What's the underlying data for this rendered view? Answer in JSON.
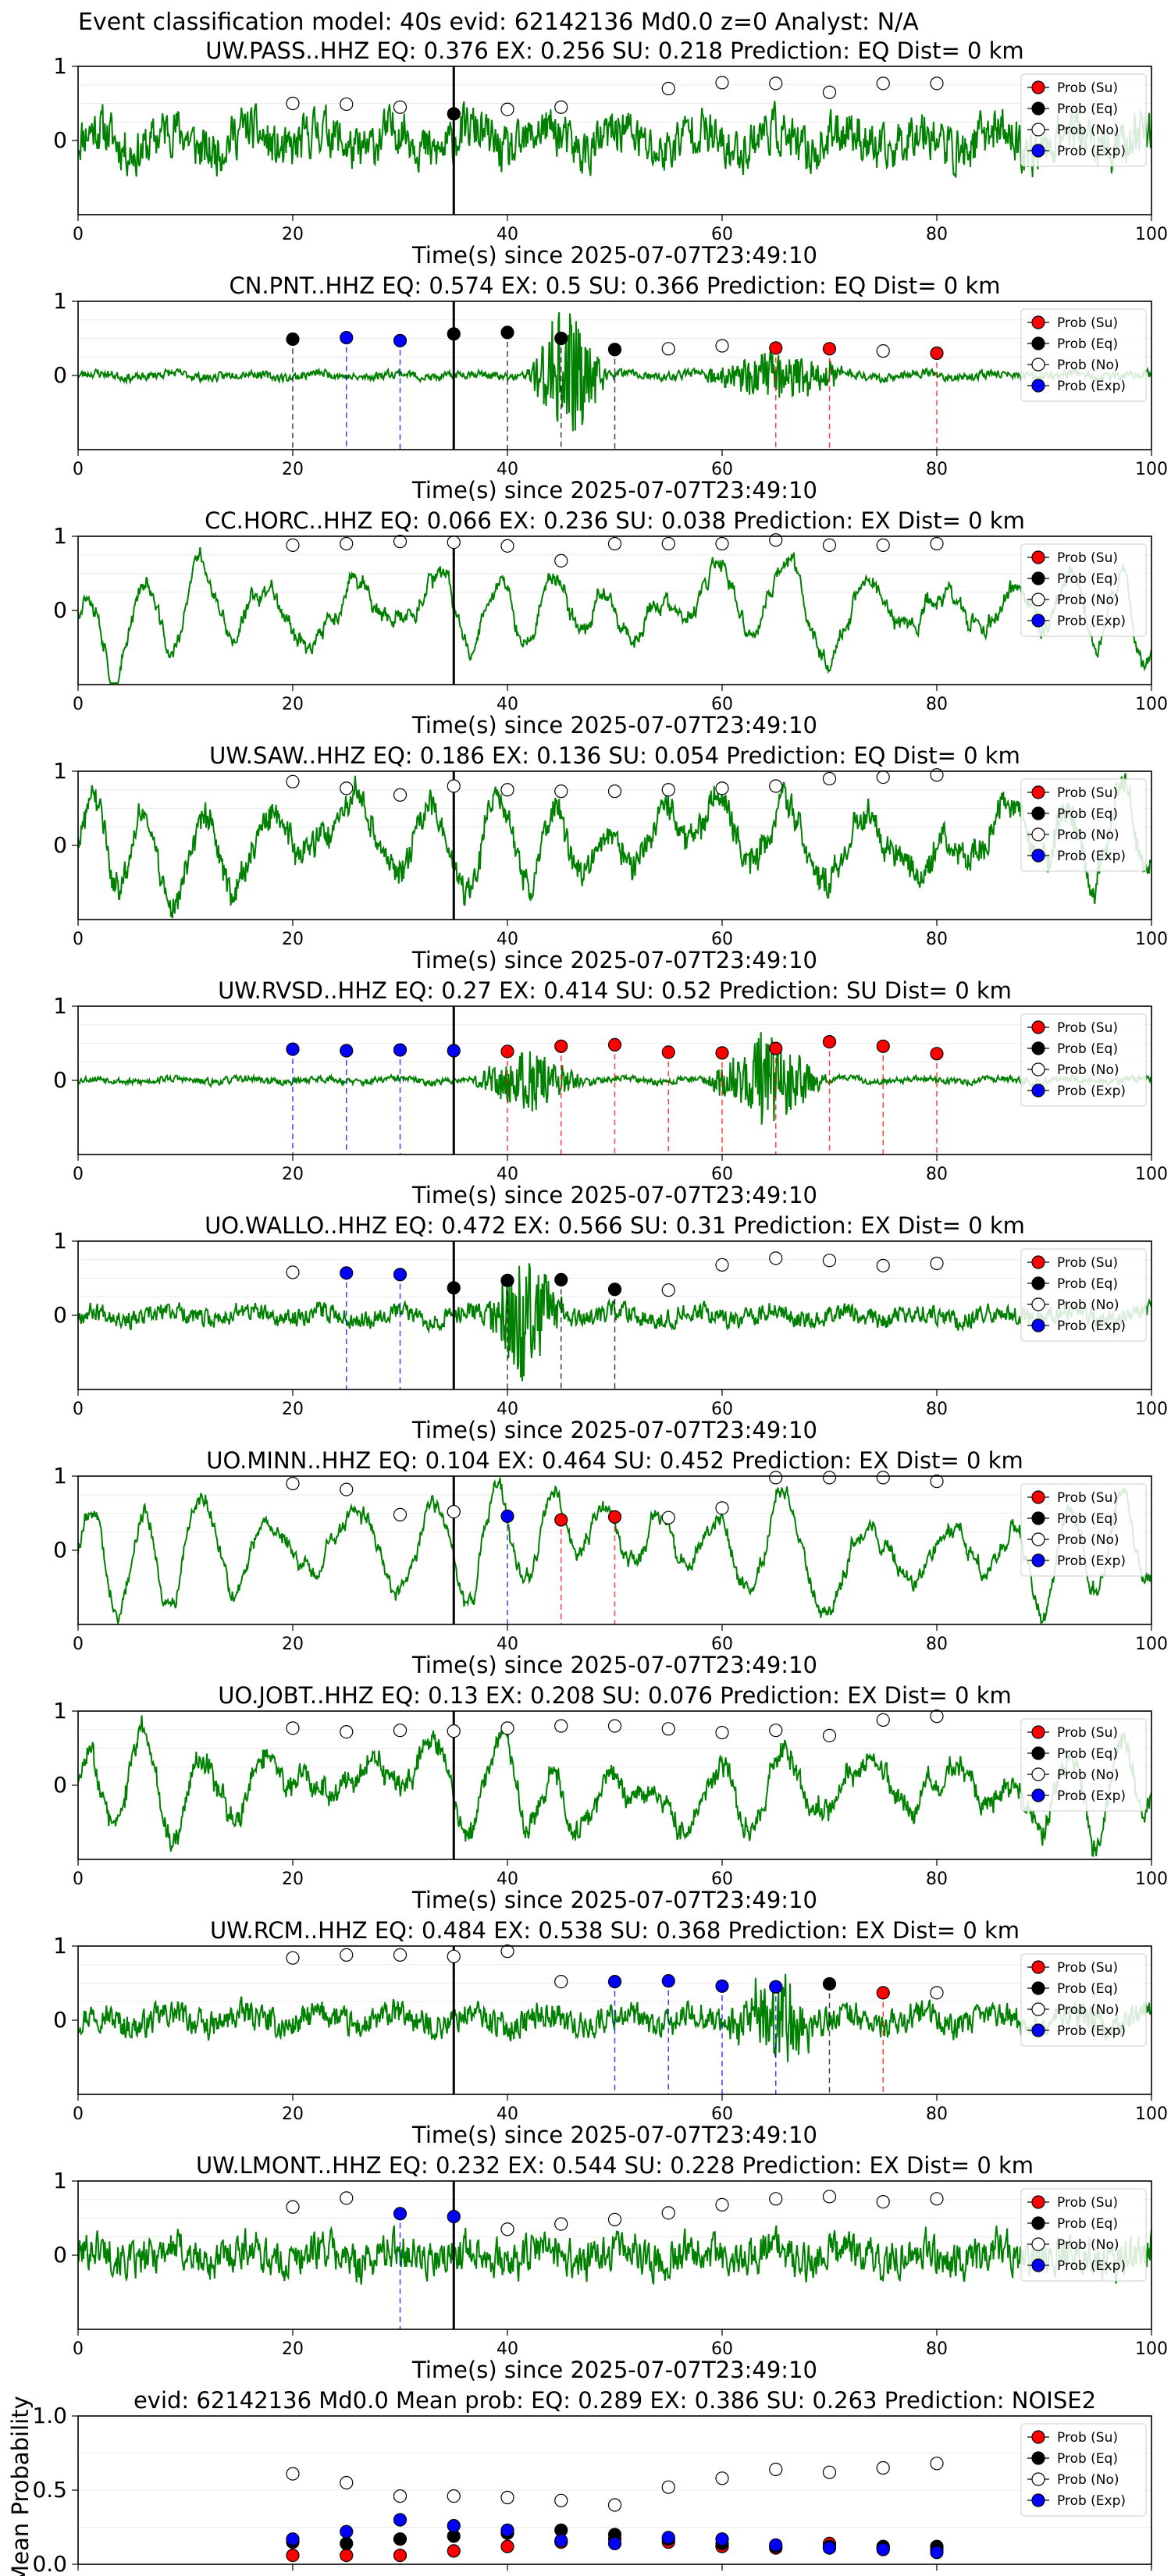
{
  "figure": {
    "suptitle": "Event classification model: 40s evid: 62142136 Md0.0 z=0 Analyst: N/A"
  },
  "legend_labels": [
    "Prob (Su)",
    "Prob (Eq)",
    "Prob (No)",
    "Prob (Exp)"
  ],
  "class_colors": {
    "su": "#ff0000",
    "eq": "#000000",
    "no": "#ffffff",
    "exp": "#0000ff"
  },
  "trace_color": "#008000",
  "chart_data": [
    {
      "type": "line",
      "title": "UW.PASS..HHZ   EQ: 0.376  EX: 0.256  SU: 0.218   Prediction: EQ    Dist= 0 km",
      "xlabel": "Time(s) since 2025-07-07T23:49:10",
      "xlim": [
        0,
        100
      ],
      "ylim": [
        -1,
        1
      ],
      "xticks": [
        0,
        20,
        40,
        60,
        80,
        100
      ],
      "yticks": [
        0,
        1
      ],
      "vline": 35,
      "points": [
        {
          "x": 20,
          "y": 0.5,
          "cls": "no"
        },
        {
          "x": 25,
          "y": 0.49,
          "cls": "no"
        },
        {
          "x": 30,
          "y": 0.45,
          "cls": "no"
        },
        {
          "x": 35,
          "y": 0.36,
          "cls": "eq"
        },
        {
          "x": 40,
          "y": 0.42,
          "cls": "no"
        },
        {
          "x": 45,
          "y": 0.45,
          "cls": "no"
        },
        {
          "x": 55,
          "y": 0.7,
          "cls": "no"
        },
        {
          "x": 60,
          "y": 0.78,
          "cls": "no"
        },
        {
          "x": 65,
          "y": 0.77,
          "cls": "no"
        },
        {
          "x": 70,
          "y": 0.65,
          "cls": "no"
        },
        {
          "x": 75,
          "y": 0.77,
          "cls": "no"
        },
        {
          "x": 80,
          "y": 0.77,
          "cls": "no"
        }
      ],
      "signal": {
        "seed": 11,
        "kind": "noisy",
        "amp": 0.55,
        "noise": 0.55
      }
    },
    {
      "type": "line",
      "title": "CN.PNT..HHZ   EQ: 0.574  EX: 0.5  SU: 0.366   Prediction: EQ    Dist= 0 km",
      "xlabel": "Time(s) since 2025-07-07T23:49:10",
      "xlim": [
        0,
        100
      ],
      "ylim": [
        -1,
        1
      ],
      "xticks": [
        0,
        20,
        40,
        60,
        80,
        100
      ],
      "yticks": [
        0,
        1
      ],
      "vline": 35,
      "points": [
        {
          "x": 20,
          "y": 0.49,
          "cls": "eq"
        },
        {
          "x": 25,
          "y": 0.51,
          "cls": "exp"
        },
        {
          "x": 30,
          "y": 0.47,
          "cls": "exp"
        },
        {
          "x": 35,
          "y": 0.56,
          "cls": "eq"
        },
        {
          "x": 40,
          "y": 0.58,
          "cls": "eq"
        },
        {
          "x": 45,
          "y": 0.5,
          "cls": "eq"
        },
        {
          "x": 50,
          "y": 0.35,
          "cls": "eq"
        },
        {
          "x": 55,
          "y": 0.36,
          "cls": "no"
        },
        {
          "x": 60,
          "y": 0.4,
          "cls": "no"
        },
        {
          "x": 65,
          "y": 0.37,
          "cls": "su"
        },
        {
          "x": 70,
          "y": 0.36,
          "cls": "su"
        },
        {
          "x": 75,
          "y": 0.33,
          "cls": "no"
        },
        {
          "x": 80,
          "y": 0.3,
          "cls": "su"
        }
      ],
      "signal": {
        "seed": 23,
        "kind": "quiet",
        "amp": 0.1,
        "noise": 0.1,
        "bursts": [
          [
            45.5,
            4,
            1.0
          ],
          [
            65,
            8,
            0.35
          ]
        ]
      }
    },
    {
      "type": "line",
      "title": "CC.HORC..HHZ   EQ: 0.066  EX: 0.236  SU: 0.038   Prediction: EX    Dist= 0 km",
      "xlabel": "Time(s) since 2025-07-07T23:49:10",
      "xlim": [
        0,
        100
      ],
      "ylim": [
        -1,
        1
      ],
      "xticks": [
        0,
        20,
        40,
        60,
        80,
        100
      ],
      "yticks": [
        0,
        1
      ],
      "vline": 35,
      "points": [
        {
          "x": 20,
          "y": 0.88,
          "cls": "no"
        },
        {
          "x": 25,
          "y": 0.9,
          "cls": "no"
        },
        {
          "x": 30,
          "y": 0.93,
          "cls": "no"
        },
        {
          "x": 35,
          "y": 0.92,
          "cls": "no"
        },
        {
          "x": 40,
          "y": 0.87,
          "cls": "no"
        },
        {
          "x": 45,
          "y": 0.67,
          "cls": "no"
        },
        {
          "x": 50,
          "y": 0.9,
          "cls": "no"
        },
        {
          "x": 55,
          "y": 0.9,
          "cls": "no"
        },
        {
          "x": 60,
          "y": 0.9,
          "cls": "no"
        },
        {
          "x": 65,
          "y": 0.95,
          "cls": "no"
        },
        {
          "x": 70,
          "y": 0.88,
          "cls": "no"
        },
        {
          "x": 75,
          "y": 0.88,
          "cls": "no"
        },
        {
          "x": 80,
          "y": 0.9,
          "cls": "no"
        }
      ],
      "signal": {
        "seed": 37,
        "kind": "wave",
        "amp": 0.55,
        "noise": 0.12
      }
    },
    {
      "type": "line",
      "title": "UW.SAW..HHZ   EQ: 0.186  EX: 0.136  SU: 0.054   Prediction: EQ    Dist= 0 km",
      "xlabel": "Time(s) since 2025-07-07T23:49:10",
      "xlim": [
        0,
        100
      ],
      "ylim": [
        -1,
        1
      ],
      "xticks": [
        0,
        20,
        40,
        60,
        80,
        100
      ],
      "yticks": [
        0,
        1
      ],
      "vline": 35,
      "points": [
        {
          "x": 20,
          "y": 0.86,
          "cls": "no"
        },
        {
          "x": 25,
          "y": 0.77,
          "cls": "no"
        },
        {
          "x": 30,
          "y": 0.68,
          "cls": "no"
        },
        {
          "x": 35,
          "y": 0.8,
          "cls": "no"
        },
        {
          "x": 40,
          "y": 0.75,
          "cls": "no"
        },
        {
          "x": 45,
          "y": 0.73,
          "cls": "no"
        },
        {
          "x": 50,
          "y": 0.73,
          "cls": "no"
        },
        {
          "x": 55,
          "y": 0.75,
          "cls": "no"
        },
        {
          "x": 60,
          "y": 0.77,
          "cls": "no"
        },
        {
          "x": 65,
          "y": 0.8,
          "cls": "no"
        },
        {
          "x": 70,
          "y": 0.9,
          "cls": "no"
        },
        {
          "x": 75,
          "y": 0.92,
          "cls": "no"
        },
        {
          "x": 80,
          "y": 0.95,
          "cls": "no"
        }
      ],
      "signal": {
        "seed": 41,
        "kind": "wave",
        "amp": 0.55,
        "noise": 0.3
      }
    },
    {
      "type": "line",
      "title": "UW.RVSD..HHZ   EQ: 0.27  EX: 0.414  SU: 0.52   Prediction: SU    Dist= 0 km",
      "xlabel": "Time(s) since 2025-07-07T23:49:10",
      "xlim": [
        0,
        100
      ],
      "ylim": [
        -1,
        1
      ],
      "xticks": [
        0,
        20,
        40,
        60,
        80,
        100
      ],
      "yticks": [
        0,
        1
      ],
      "vline": 35,
      "points": [
        {
          "x": 20,
          "y": 0.42,
          "cls": "exp"
        },
        {
          "x": 25,
          "y": 0.4,
          "cls": "exp"
        },
        {
          "x": 30,
          "y": 0.41,
          "cls": "exp"
        },
        {
          "x": 35,
          "y": 0.4,
          "cls": "exp"
        },
        {
          "x": 40,
          "y": 0.39,
          "cls": "su"
        },
        {
          "x": 45,
          "y": 0.46,
          "cls": "su"
        },
        {
          "x": 50,
          "y": 0.48,
          "cls": "su"
        },
        {
          "x": 55,
          "y": 0.38,
          "cls": "su"
        },
        {
          "x": 60,
          "y": 0.37,
          "cls": "su"
        },
        {
          "x": 65,
          "y": 0.43,
          "cls": "su"
        },
        {
          "x": 70,
          "y": 0.52,
          "cls": "su"
        },
        {
          "x": 75,
          "y": 0.46,
          "cls": "su"
        },
        {
          "x": 80,
          "y": 0.36,
          "cls": "su"
        }
      ],
      "signal": {
        "seed": 53,
        "kind": "quiet",
        "amp": 0.08,
        "noise": 0.08,
        "bursts": [
          [
            42,
            6,
            0.45
          ],
          [
            64,
            6,
            0.7
          ]
        ]
      }
    },
    {
      "type": "line",
      "title": "UO.WALLO..HHZ   EQ: 0.472  EX: 0.566  SU: 0.31   Prediction: EX    Dist= 0 km",
      "xlabel": "Time(s) since 2025-07-07T23:49:10",
      "xlim": [
        0,
        100
      ],
      "ylim": [
        -1,
        1
      ],
      "xticks": [
        0,
        20,
        40,
        60,
        80,
        100
      ],
      "yticks": [
        0,
        1
      ],
      "vline": 35,
      "points": [
        {
          "x": 20,
          "y": 0.58,
          "cls": "no"
        },
        {
          "x": 25,
          "y": 0.57,
          "cls": "exp"
        },
        {
          "x": 30,
          "y": 0.55,
          "cls": "exp"
        },
        {
          "x": 35,
          "y": 0.37,
          "cls": "eq"
        },
        {
          "x": 40,
          "y": 0.47,
          "cls": "eq"
        },
        {
          "x": 45,
          "y": 0.48,
          "cls": "eq"
        },
        {
          "x": 50,
          "y": 0.35,
          "cls": "eq"
        },
        {
          "x": 55,
          "y": 0.34,
          "cls": "no"
        },
        {
          "x": 60,
          "y": 0.68,
          "cls": "no"
        },
        {
          "x": 65,
          "y": 0.77,
          "cls": "no"
        },
        {
          "x": 70,
          "y": 0.74,
          "cls": "no"
        },
        {
          "x": 75,
          "y": 0.67,
          "cls": "no"
        },
        {
          "x": 80,
          "y": 0.7,
          "cls": "no"
        }
      ],
      "signal": {
        "seed": 67,
        "kind": "quiet",
        "amp": 0.2,
        "noise": 0.22,
        "bursts": [
          [
            41.5,
            4,
            0.9
          ]
        ]
      }
    },
    {
      "type": "line",
      "title": "UO.MINN..HHZ   EQ: 0.104  EX: 0.464  SU: 0.452   Prediction: EX    Dist= 0 km",
      "xlabel": "Time(s) since 2025-07-07T23:49:10",
      "xlim": [
        0,
        100
      ],
      "ylim": [
        -1,
        1
      ],
      "xticks": [
        0,
        20,
        40,
        60,
        80,
        100
      ],
      "yticks": [
        0,
        1
      ],
      "vline": 35,
      "points": [
        {
          "x": 20,
          "y": 0.9,
          "cls": "no"
        },
        {
          "x": 25,
          "y": 0.82,
          "cls": "no"
        },
        {
          "x": 30,
          "y": 0.48,
          "cls": "no"
        },
        {
          "x": 35,
          "y": 0.52,
          "cls": "no"
        },
        {
          "x": 40,
          "y": 0.46,
          "cls": "exp"
        },
        {
          "x": 45,
          "y": 0.41,
          "cls": "su"
        },
        {
          "x": 50,
          "y": 0.45,
          "cls": "su"
        },
        {
          "x": 55,
          "y": 0.44,
          "cls": "no"
        },
        {
          "x": 60,
          "y": 0.57,
          "cls": "no"
        },
        {
          "x": 65,
          "y": 0.98,
          "cls": "no"
        },
        {
          "x": 70,
          "y": 0.98,
          "cls": "no"
        },
        {
          "x": 75,
          "y": 0.98,
          "cls": "no"
        },
        {
          "x": 80,
          "y": 0.93,
          "cls": "no"
        }
      ],
      "signal": {
        "seed": 79,
        "kind": "wave",
        "amp": 0.65,
        "noise": 0.1
      }
    },
    {
      "type": "line",
      "title": "UO.JOBT..HHZ   EQ: 0.13  EX: 0.208  SU: 0.076   Prediction: EX    Dist= 0 km",
      "xlabel": "Time(s) since 2025-07-07T23:49:10",
      "xlim": [
        0,
        100
      ],
      "ylim": [
        -1,
        1
      ],
      "xticks": [
        0,
        20,
        40,
        60,
        80,
        100
      ],
      "yticks": [
        0,
        1
      ],
      "vline": 35,
      "points": [
        {
          "x": 20,
          "y": 0.77,
          "cls": "no"
        },
        {
          "x": 25,
          "y": 0.72,
          "cls": "no"
        },
        {
          "x": 30,
          "y": 0.74,
          "cls": "no"
        },
        {
          "x": 35,
          "y": 0.73,
          "cls": "no"
        },
        {
          "x": 40,
          "y": 0.77,
          "cls": "no"
        },
        {
          "x": 45,
          "y": 0.8,
          "cls": "no"
        },
        {
          "x": 50,
          "y": 0.8,
          "cls": "no"
        },
        {
          "x": 55,
          "y": 0.76,
          "cls": "no"
        },
        {
          "x": 60,
          "y": 0.71,
          "cls": "no"
        },
        {
          "x": 65,
          "y": 0.74,
          "cls": "no"
        },
        {
          "x": 70,
          "y": 0.67,
          "cls": "no"
        },
        {
          "x": 75,
          "y": 0.88,
          "cls": "no"
        },
        {
          "x": 80,
          "y": 0.93,
          "cls": "no"
        }
      ],
      "signal": {
        "seed": 83,
        "kind": "wave",
        "amp": 0.5,
        "noise": 0.22
      }
    },
    {
      "type": "line",
      "title": "UW.RCM..HHZ   EQ: 0.484  EX: 0.538  SU: 0.368   Prediction: EX    Dist= 0 km",
      "xlabel": "Time(s) since 2025-07-07T23:49:10",
      "xlim": [
        0,
        100
      ],
      "ylim": [
        -1,
        1
      ],
      "xticks": [
        0,
        20,
        40,
        60,
        80,
        100
      ],
      "yticks": [
        0,
        1
      ],
      "vline": 35,
      "points": [
        {
          "x": 20,
          "y": 0.84,
          "cls": "no"
        },
        {
          "x": 25,
          "y": 0.88,
          "cls": "no"
        },
        {
          "x": 30,
          "y": 0.88,
          "cls": "no"
        },
        {
          "x": 35,
          "y": 0.86,
          "cls": "no"
        },
        {
          "x": 40,
          "y": 0.93,
          "cls": "no"
        },
        {
          "x": 45,
          "y": 0.52,
          "cls": "no"
        },
        {
          "x": 50,
          "y": 0.52,
          "cls": "exp"
        },
        {
          "x": 55,
          "y": 0.53,
          "cls": "exp"
        },
        {
          "x": 60,
          "y": 0.46,
          "cls": "exp"
        },
        {
          "x": 65,
          "y": 0.45,
          "cls": "exp"
        },
        {
          "x": 70,
          "y": 0.49,
          "cls": "eq"
        },
        {
          "x": 75,
          "y": 0.37,
          "cls": "su"
        },
        {
          "x": 80,
          "y": 0.37,
          "cls": "no"
        }
      ],
      "signal": {
        "seed": 97,
        "kind": "noisy",
        "amp": 0.3,
        "noise": 0.32,
        "bursts": [
          [
            65,
            5,
            0.6
          ]
        ]
      }
    },
    {
      "type": "line",
      "title": "UW.LMONT..HHZ   EQ: 0.232  EX: 0.544  SU: 0.228   Prediction: EX    Dist= 0 km",
      "xlabel": "Time(s) since 2025-07-07T23:49:10",
      "xlim": [
        0,
        100
      ],
      "ylim": [
        -1,
        1
      ],
      "xticks": [
        0,
        20,
        40,
        60,
        80,
        100
      ],
      "yticks": [
        0,
        1
      ],
      "vline": 35,
      "points": [
        {
          "x": 20,
          "y": 0.65,
          "cls": "no"
        },
        {
          "x": 25,
          "y": 0.77,
          "cls": "no"
        },
        {
          "x": 30,
          "y": 0.56,
          "cls": "exp"
        },
        {
          "x": 35,
          "y": 0.52,
          "cls": "exp"
        },
        {
          "x": 40,
          "y": 0.35,
          "cls": "no"
        },
        {
          "x": 45,
          "y": 0.42,
          "cls": "no"
        },
        {
          "x": 50,
          "y": 0.48,
          "cls": "no"
        },
        {
          "x": 55,
          "y": 0.57,
          "cls": "no"
        },
        {
          "x": 60,
          "y": 0.68,
          "cls": "no"
        },
        {
          "x": 65,
          "y": 0.76,
          "cls": "no"
        },
        {
          "x": 70,
          "y": 0.79,
          "cls": "no"
        },
        {
          "x": 75,
          "y": 0.72,
          "cls": "no"
        },
        {
          "x": 80,
          "y": 0.76,
          "cls": "no"
        }
      ],
      "signal": {
        "seed": 101,
        "kind": "noisy",
        "amp": 0.35,
        "noise": 0.45
      }
    },
    {
      "type": "scatter",
      "title": "evid: 62142136  Md0.0   Mean prob:   EQ: 0.289  EX: 0.386  SU: 0.263   Prediction: NOISE2",
      "ylabel": "Mean Probability",
      "xlim": [
        0,
        100
      ],
      "ylim": [
        0,
        1
      ],
      "xticks": [
        0,
        20,
        40,
        60,
        80,
        100
      ],
      "yticks": [
        0.0,
        0.5,
        1.0
      ],
      "ytick_labels": [
        "0.0",
        "0.5",
        "1.0"
      ],
      "x": [
        20,
        25,
        30,
        35,
        40,
        45,
        50,
        55,
        60,
        65,
        70,
        75,
        80
      ],
      "series": [
        {
          "name": "Prob (Su)",
          "cls": "su",
          "values": [
            0.06,
            0.06,
            0.06,
            0.09,
            0.12,
            0.15,
            0.17,
            0.15,
            0.12,
            0.11,
            0.14,
            0.11,
            0.1
          ]
        },
        {
          "name": "Prob (Eq)",
          "cls": "eq",
          "values": [
            0.15,
            0.14,
            0.17,
            0.19,
            0.21,
            0.23,
            0.2,
            0.17,
            0.14,
            0.12,
            0.12,
            0.12,
            0.12
          ]
        },
        {
          "name": "Prob (No)",
          "cls": "no",
          "values": [
            0.61,
            0.55,
            0.46,
            0.46,
            0.45,
            0.43,
            0.4,
            0.52,
            0.58,
            0.64,
            0.62,
            0.65,
            0.68
          ]
        },
        {
          "name": "Prob (Exp)",
          "cls": "exp",
          "values": [
            0.17,
            0.22,
            0.3,
            0.26,
            0.23,
            0.16,
            0.14,
            0.18,
            0.17,
            0.13,
            0.11,
            0.1,
            0.08
          ]
        }
      ]
    }
  ]
}
